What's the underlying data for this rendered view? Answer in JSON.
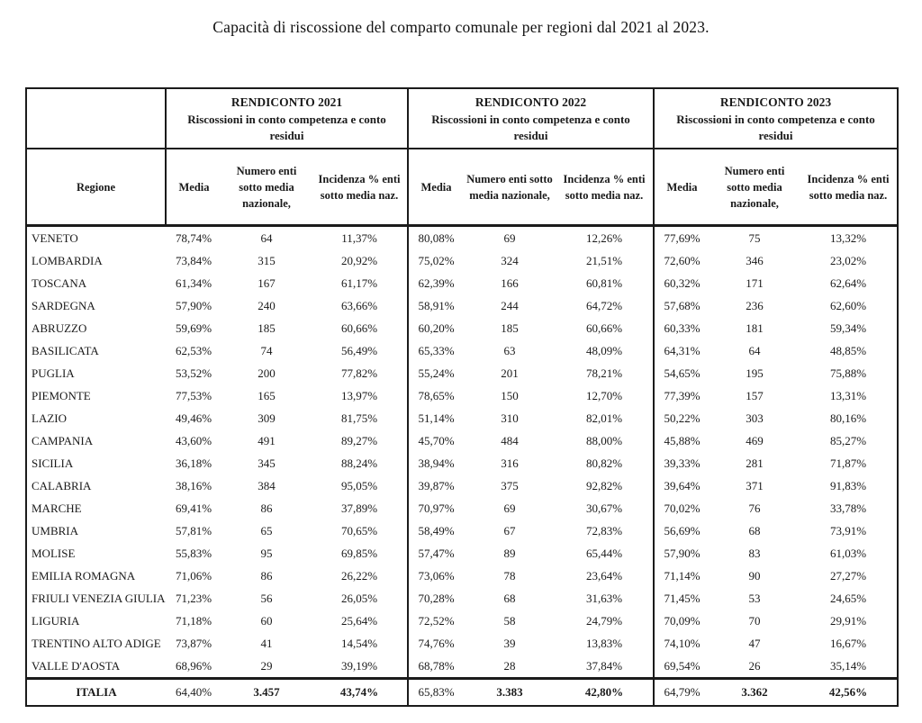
{
  "title": "Capacità di riscossione del comparto comunale per regioni dal 2021 al 2023.",
  "table": {
    "region_header": "Regione",
    "groups": [
      {
        "title": "RENDICONTO 2021",
        "subtitle": "Riscossioni in conto competenza e conto residui"
      },
      {
        "title": "RENDICONTO 2022",
        "subtitle": "Riscossioni in conto competenza e conto residui"
      },
      {
        "title": "RENDICONTO 2023",
        "subtitle": "Riscossioni in conto competenza e conto residui"
      }
    ],
    "sub_headers": [
      "Media",
      "Numero enti sotto media nazionale,",
      "Incidenza % enti sotto media naz."
    ],
    "rows": [
      {
        "region": "VENETO",
        "values": [
          "78,74%",
          "64",
          "11,37%",
          "80,08%",
          "69",
          "12,26%",
          "77,69%",
          "75",
          "13,32%"
        ]
      },
      {
        "region": "LOMBARDIA",
        "values": [
          "73,84%",
          "315",
          "20,92%",
          "75,02%",
          "324",
          "21,51%",
          "72,60%",
          "346",
          "23,02%"
        ]
      },
      {
        "region": "TOSCANA",
        "values": [
          "61,34%",
          "167",
          "61,17%",
          "62,39%",
          "166",
          "60,81%",
          "60,32%",
          "171",
          "62,64%"
        ]
      },
      {
        "region": "SARDEGNA",
        "values": [
          "57,90%",
          "240",
          "63,66%",
          "58,91%",
          "244",
          "64,72%",
          "57,68%",
          "236",
          "62,60%"
        ]
      },
      {
        "region": "ABRUZZO",
        "values": [
          "59,69%",
          "185",
          "60,66%",
          "60,20%",
          "185",
          "60,66%",
          "60,33%",
          "181",
          "59,34%"
        ]
      },
      {
        "region": "BASILICATA",
        "values": [
          "62,53%",
          "74",
          "56,49%",
          "65,33%",
          "63",
          "48,09%",
          "64,31%",
          "64",
          "48,85%"
        ]
      },
      {
        "region": "PUGLIA",
        "values": [
          "53,52%",
          "200",
          "77,82%",
          "55,24%",
          "201",
          "78,21%",
          "54,65%",
          "195",
          "75,88%"
        ]
      },
      {
        "region": "PIEMONTE",
        "values": [
          "77,53%",
          "165",
          "13,97%",
          "78,65%",
          "150",
          "12,70%",
          "77,39%",
          "157",
          "13,31%"
        ]
      },
      {
        "region": "LAZIO",
        "values": [
          "49,46%",
          "309",
          "81,75%",
          "51,14%",
          "310",
          "82,01%",
          "50,22%",
          "303",
          "80,16%"
        ]
      },
      {
        "region": "CAMPANIA",
        "values": [
          "43,60%",
          "491",
          "89,27%",
          "45,70%",
          "484",
          "88,00%",
          "45,88%",
          "469",
          "85,27%"
        ]
      },
      {
        "region": "SICILIA",
        "values": [
          "36,18%",
          "345",
          "88,24%",
          "38,94%",
          "316",
          "80,82%",
          "39,33%",
          "281",
          "71,87%"
        ]
      },
      {
        "region": "CALABRIA",
        "values": [
          "38,16%",
          "384",
          "95,05%",
          "39,87%",
          "375",
          "92,82%",
          "39,64%",
          "371",
          "91,83%"
        ]
      },
      {
        "region": "MARCHE",
        "values": [
          "69,41%",
          "86",
          "37,89%",
          "70,97%",
          "69",
          "30,67%",
          "70,02%",
          "76",
          "33,78%"
        ]
      },
      {
        "region": "UMBRIA",
        "values": [
          "57,81%",
          "65",
          "70,65%",
          "58,49%",
          "67",
          "72,83%",
          "56,69%",
          "68",
          "73,91%"
        ]
      },
      {
        "region": "MOLISE",
        "values": [
          "55,83%",
          "95",
          "69,85%",
          "57,47%",
          "89",
          "65,44%",
          "57,90%",
          "83",
          "61,03%"
        ]
      },
      {
        "region": "EMILIA ROMAGNA",
        "values": [
          "71,06%",
          "86",
          "26,22%",
          "73,06%",
          "78",
          "23,64%",
          "71,14%",
          "90",
          "27,27%"
        ]
      },
      {
        "region": "FRIULI VENEZIA GIULIA",
        "values": [
          "71,23%",
          "56",
          "26,05%",
          "70,28%",
          "68",
          "31,63%",
          "71,45%",
          "53",
          "24,65%"
        ]
      },
      {
        "region": "LIGURIA",
        "values": [
          "71,18%",
          "60",
          "25,64%",
          "72,52%",
          "58",
          "24,79%",
          "70,09%",
          "70",
          "29,91%"
        ]
      },
      {
        "region": "TRENTINO ALTO ADIGE",
        "values": [
          "73,87%",
          "41",
          "14,54%",
          "74,76%",
          "39",
          "13,83%",
          "74,10%",
          "47",
          "16,67%"
        ]
      },
      {
        "region": "VALLE D'AOSTA",
        "values": [
          "68,96%",
          "29",
          "39,19%",
          "68,78%",
          "28",
          "37,84%",
          "69,54%",
          "26",
          "35,14%"
        ]
      }
    ],
    "total_row": {
      "region": "ITALIA",
      "values": [
        "64,40%",
        "3.457",
        "43,74%",
        "65,83%",
        "3.383",
        "42,80%",
        "64,79%",
        "3.362",
        "42,56%"
      ]
    }
  }
}
